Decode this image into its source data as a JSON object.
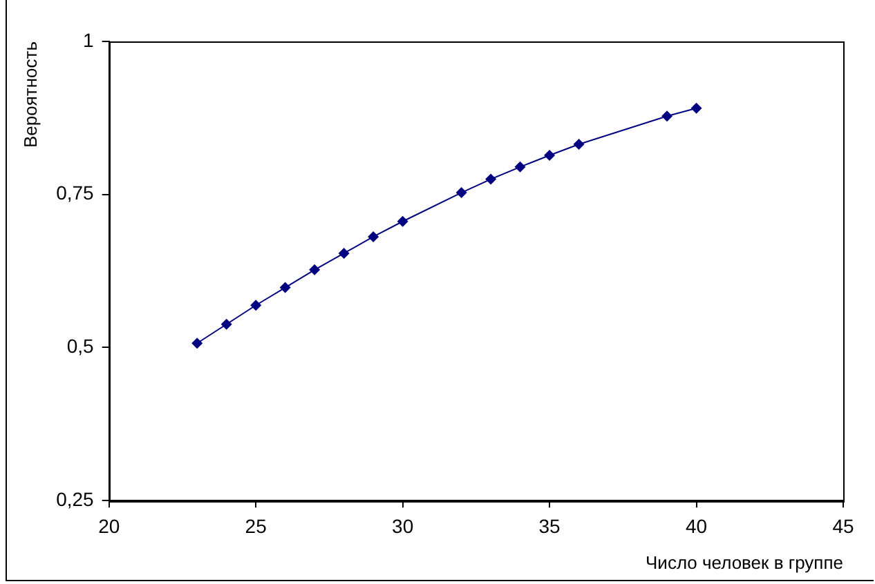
{
  "chart_data": {
    "type": "line",
    "xlabel": "Число человек в группе",
    "ylabel": "Вероятность",
    "x": [
      23,
      24,
      25,
      26,
      27,
      28,
      29,
      30,
      32,
      33,
      34,
      35,
      36,
      39,
      40
    ],
    "series": [
      {
        "color": "#000080",
        "values": [
          0.507,
          0.538,
          0.569,
          0.598,
          0.627,
          0.654,
          0.681,
          0.706,
          0.753,
          0.775,
          0.795,
          0.814,
          0.832,
          0.878,
          0.891
        ]
      }
    ],
    "xlim": [
      20,
      45
    ],
    "xticks": [
      20,
      25,
      30,
      35,
      40,
      45
    ],
    "ylim": [
      0.25,
      1
    ],
    "yticks": [
      {
        "value": 0.25,
        "label": "0,25"
      },
      {
        "value": 0.5,
        "label": "0,5"
      },
      {
        "value": 0.75,
        "label": "0,75"
      },
      1
    ],
    "grid": false,
    "legend": false,
    "marker": "diamond",
    "line_style": "solid"
  }
}
